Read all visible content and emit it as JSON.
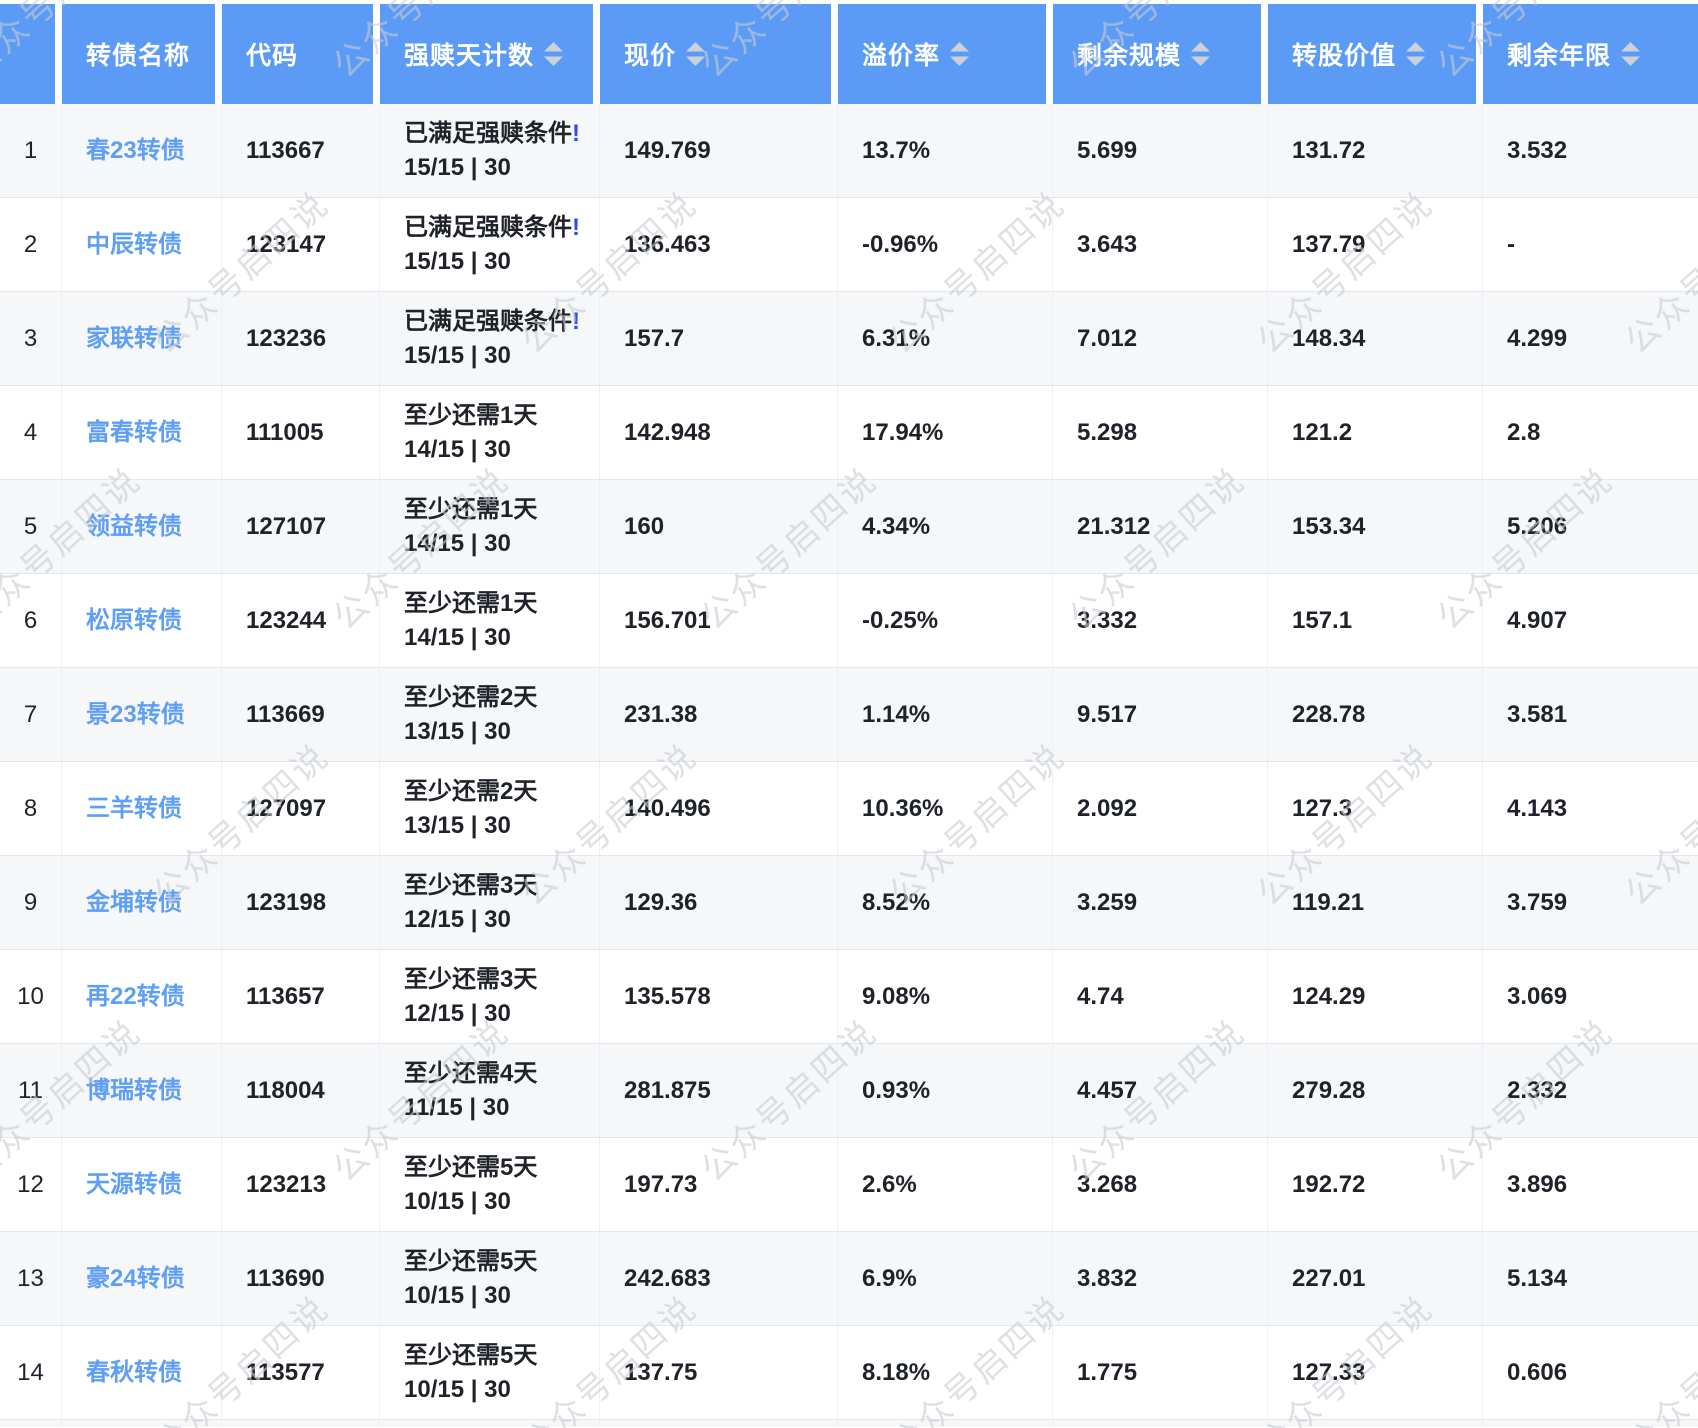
{
  "watermark": {
    "text": "公众号启四说"
  },
  "colors": {
    "header_bg": "#5b9bf6",
    "link": "#5e9ef7",
    "alert": "#2f4bef",
    "row_alt": "#f6f7f9",
    "sort_icon": "#cbd1d9",
    "watermark": "#c9ccd2",
    "text": "#1f2329",
    "row_border": "#e4e7ea",
    "cell_border": "#eef0f3"
  },
  "table": {
    "columns": [
      {
        "key": "index",
        "label": "",
        "sortable": false
      },
      {
        "key": "name",
        "label": "转债名称",
        "sortable": false
      },
      {
        "key": "code",
        "label": "代码",
        "sortable": false
      },
      {
        "key": "redeem",
        "label": "强赎天计数",
        "sortable": true
      },
      {
        "key": "price",
        "label": "现价",
        "sortable": true
      },
      {
        "key": "premium",
        "label": "溢价率",
        "sortable": true
      },
      {
        "key": "scale",
        "label": "剩余规模",
        "sortable": true
      },
      {
        "key": "conv_value",
        "label": "转股价值",
        "sortable": true
      },
      {
        "key": "years",
        "label": "剩余年限",
        "sortable": true
      }
    ],
    "rows": [
      {
        "index": "1",
        "name": "春23转债",
        "code": "113667",
        "redeem_status": "已满足强赎条件",
        "redeem_alert": true,
        "redeem_count": "15/15 | 30",
        "price": "149.769",
        "premium": "13.7%",
        "scale": "5.699",
        "conv_value": "131.72",
        "years": "3.532"
      },
      {
        "index": "2",
        "name": "中辰转债",
        "code": "123147",
        "redeem_status": "已满足强赎条件",
        "redeem_alert": true,
        "redeem_count": "15/15 | 30",
        "price": "136.463",
        "premium": "-0.96%",
        "scale": "3.643",
        "conv_value": "137.79",
        "years": "-"
      },
      {
        "index": "3",
        "name": "家联转债",
        "code": "123236",
        "redeem_status": "已满足强赎条件",
        "redeem_alert": true,
        "redeem_count": "15/15 | 30",
        "price": "157.7",
        "premium": "6.31%",
        "scale": "7.012",
        "conv_value": "148.34",
        "years": "4.299"
      },
      {
        "index": "4",
        "name": "富春转债",
        "code": "111005",
        "redeem_status": "至少还需1天",
        "redeem_alert": false,
        "redeem_count": "14/15 | 30",
        "price": "142.948",
        "premium": "17.94%",
        "scale": "5.298",
        "conv_value": "121.2",
        "years": "2.8"
      },
      {
        "index": "5",
        "name": "领益转债",
        "code": "127107",
        "redeem_status": "至少还需1天",
        "redeem_alert": false,
        "redeem_count": "14/15 | 30",
        "price": "160",
        "premium": "4.34%",
        "scale": "21.312",
        "conv_value": "153.34",
        "years": "5.206"
      },
      {
        "index": "6",
        "name": "松原转债",
        "code": "123244",
        "redeem_status": "至少还需1天",
        "redeem_alert": false,
        "redeem_count": "14/15 | 30",
        "price": "156.701",
        "premium": "-0.25%",
        "scale": "3.332",
        "conv_value": "157.1",
        "years": "4.907"
      },
      {
        "index": "7",
        "name": "景23转债",
        "code": "113669",
        "redeem_status": "至少还需2天",
        "redeem_alert": false,
        "redeem_count": "13/15 | 30",
        "price": "231.38",
        "premium": "1.14%",
        "scale": "9.517",
        "conv_value": "228.78",
        "years": "3.581"
      },
      {
        "index": "8",
        "name": "三羊转债",
        "code": "127097",
        "redeem_status": "至少还需2天",
        "redeem_alert": false,
        "redeem_count": "13/15 | 30",
        "price": "140.496",
        "premium": "10.36%",
        "scale": "2.092",
        "conv_value": "127.3",
        "years": "4.143"
      },
      {
        "index": "9",
        "name": "金埔转债",
        "code": "123198",
        "redeem_status": "至少还需3天",
        "redeem_alert": false,
        "redeem_count": "12/15 | 30",
        "price": "129.36",
        "premium": "8.52%",
        "scale": "3.259",
        "conv_value": "119.21",
        "years": "3.759"
      },
      {
        "index": "10",
        "name": "再22转债",
        "code": "113657",
        "redeem_status": "至少还需3天",
        "redeem_alert": false,
        "redeem_count": "12/15 | 30",
        "price": "135.578",
        "premium": "9.08%",
        "scale": "4.74",
        "conv_value": "124.29",
        "years": "3.069"
      },
      {
        "index": "11",
        "name": "博瑞转债",
        "code": "118004",
        "redeem_status": "至少还需4天",
        "redeem_alert": false,
        "redeem_count": "11/15 | 30",
        "price": "281.875",
        "premium": "0.93%",
        "scale": "4.457",
        "conv_value": "279.28",
        "years": "2.332"
      },
      {
        "index": "12",
        "name": "天源转债",
        "code": "123213",
        "redeem_status": "至少还需5天",
        "redeem_alert": false,
        "redeem_count": "10/15 | 30",
        "price": "197.73",
        "premium": "2.6%",
        "scale": "3.268",
        "conv_value": "192.72",
        "years": "3.896"
      },
      {
        "index": "13",
        "name": "豪24转债",
        "code": "113690",
        "redeem_status": "至少还需5天",
        "redeem_alert": false,
        "redeem_count": "10/15 | 30",
        "price": "242.683",
        "premium": "6.9%",
        "scale": "3.832",
        "conv_value": "227.01",
        "years": "5.134"
      },
      {
        "index": "14",
        "name": "春秋转债",
        "code": "113577",
        "redeem_status": "至少还需5天",
        "redeem_alert": false,
        "redeem_count": "10/15 | 30",
        "price": "137.75",
        "premium": "8.18%",
        "scale": "1.775",
        "conv_value": "127.33",
        "years": "0.606"
      }
    ]
  }
}
